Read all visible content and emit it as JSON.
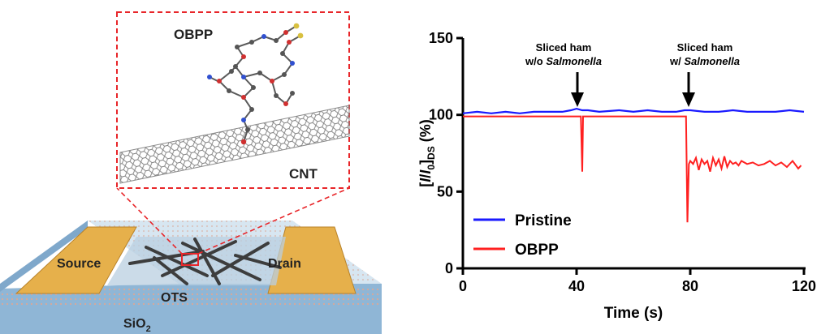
{
  "schematic": {
    "molecule_label": "OBPP",
    "nanotube_label": "CNT",
    "source_label": "Source",
    "drain_label": "Drain",
    "channel_label": "OTS",
    "substrate_label": "SiO",
    "substrate_subscript": "2",
    "colors": {
      "zoom_box": "#e8262a",
      "electrode": "#e6b04b",
      "substrate_top": "#d7e6f1",
      "substrate_side": "#8fb6d6",
      "oxide_layer": "#efc8b8"
    }
  },
  "chart_data": {
    "type": "line",
    "xlabel": "Time (s)",
    "ylabel": {
      "open": "[",
      "i1": "I",
      "slash": "/",
      "i2": "I",
      "sub0": "0",
      "close": "]",
      "subDS": "DS",
      "unit": " (%)"
    },
    "xlim": [
      0,
      120
    ],
    "ylim": [
      0,
      150
    ],
    "x_ticks": [
      0,
      40,
      80,
      120
    ],
    "y_ticks": [
      0,
      50,
      100,
      150
    ],
    "x_tick_labels": [
      "0",
      "40",
      "80",
      "120"
    ],
    "y_tick_labels": [
      "0",
      "50",
      "100",
      "150"
    ],
    "legend_position": "bottom-left",
    "annotations": [
      {
        "x": 42,
        "line1": "Sliced ham",
        "line2_prefix": "w/o ",
        "line2_italic": "Salmonella"
      },
      {
        "x": 79,
        "line1": "Sliced ham",
        "line2_prefix": "w/ ",
        "line2_italic": "Salmonella"
      }
    ],
    "series": [
      {
        "name": "Pristine",
        "color": "#1a1aff",
        "x": [
          0,
          5,
          10,
          15,
          20,
          25,
          30,
          35,
          38,
          40,
          42,
          44,
          48,
          55,
          60,
          65,
          70,
          75,
          78,
          80,
          85,
          90,
          95,
          100,
          105,
          110,
          115,
          120
        ],
        "y": [
          101,
          102,
          101,
          102,
          101,
          102,
          102,
          102,
          103,
          104,
          103,
          103,
          102,
          103,
          102,
          103,
          102,
          102,
          103,
          103,
          102,
          102,
          103,
          102,
          102,
          102,
          103,
          102
        ]
      },
      {
        "name": "OBPP",
        "color": "#ff2020",
        "x": [
          0,
          10,
          20,
          30,
          40,
          41.5,
          42,
          42.3,
          42.8,
          44,
          50,
          60,
          70,
          78.5,
          79,
          79.5,
          80,
          81,
          82,
          83,
          84,
          85,
          86,
          87,
          88,
          89,
          90,
          91,
          92,
          93,
          94,
          95,
          96,
          97,
          98,
          100,
          102,
          104,
          106,
          108,
          110,
          112,
          114,
          116,
          118,
          119
        ],
        "y": [
          99,
          99,
          99,
          99,
          99,
          99,
          63,
          99,
          99,
          99,
          99,
          99,
          99,
          99,
          30,
          68,
          70,
          68,
          72,
          64,
          71,
          68,
          70,
          63,
          72,
          67,
          71,
          65,
          73,
          66,
          70,
          68,
          69,
          67,
          70,
          68,
          69,
          67,
          68,
          70,
          67,
          69,
          66,
          70,
          65,
          67
        ]
      }
    ]
  }
}
